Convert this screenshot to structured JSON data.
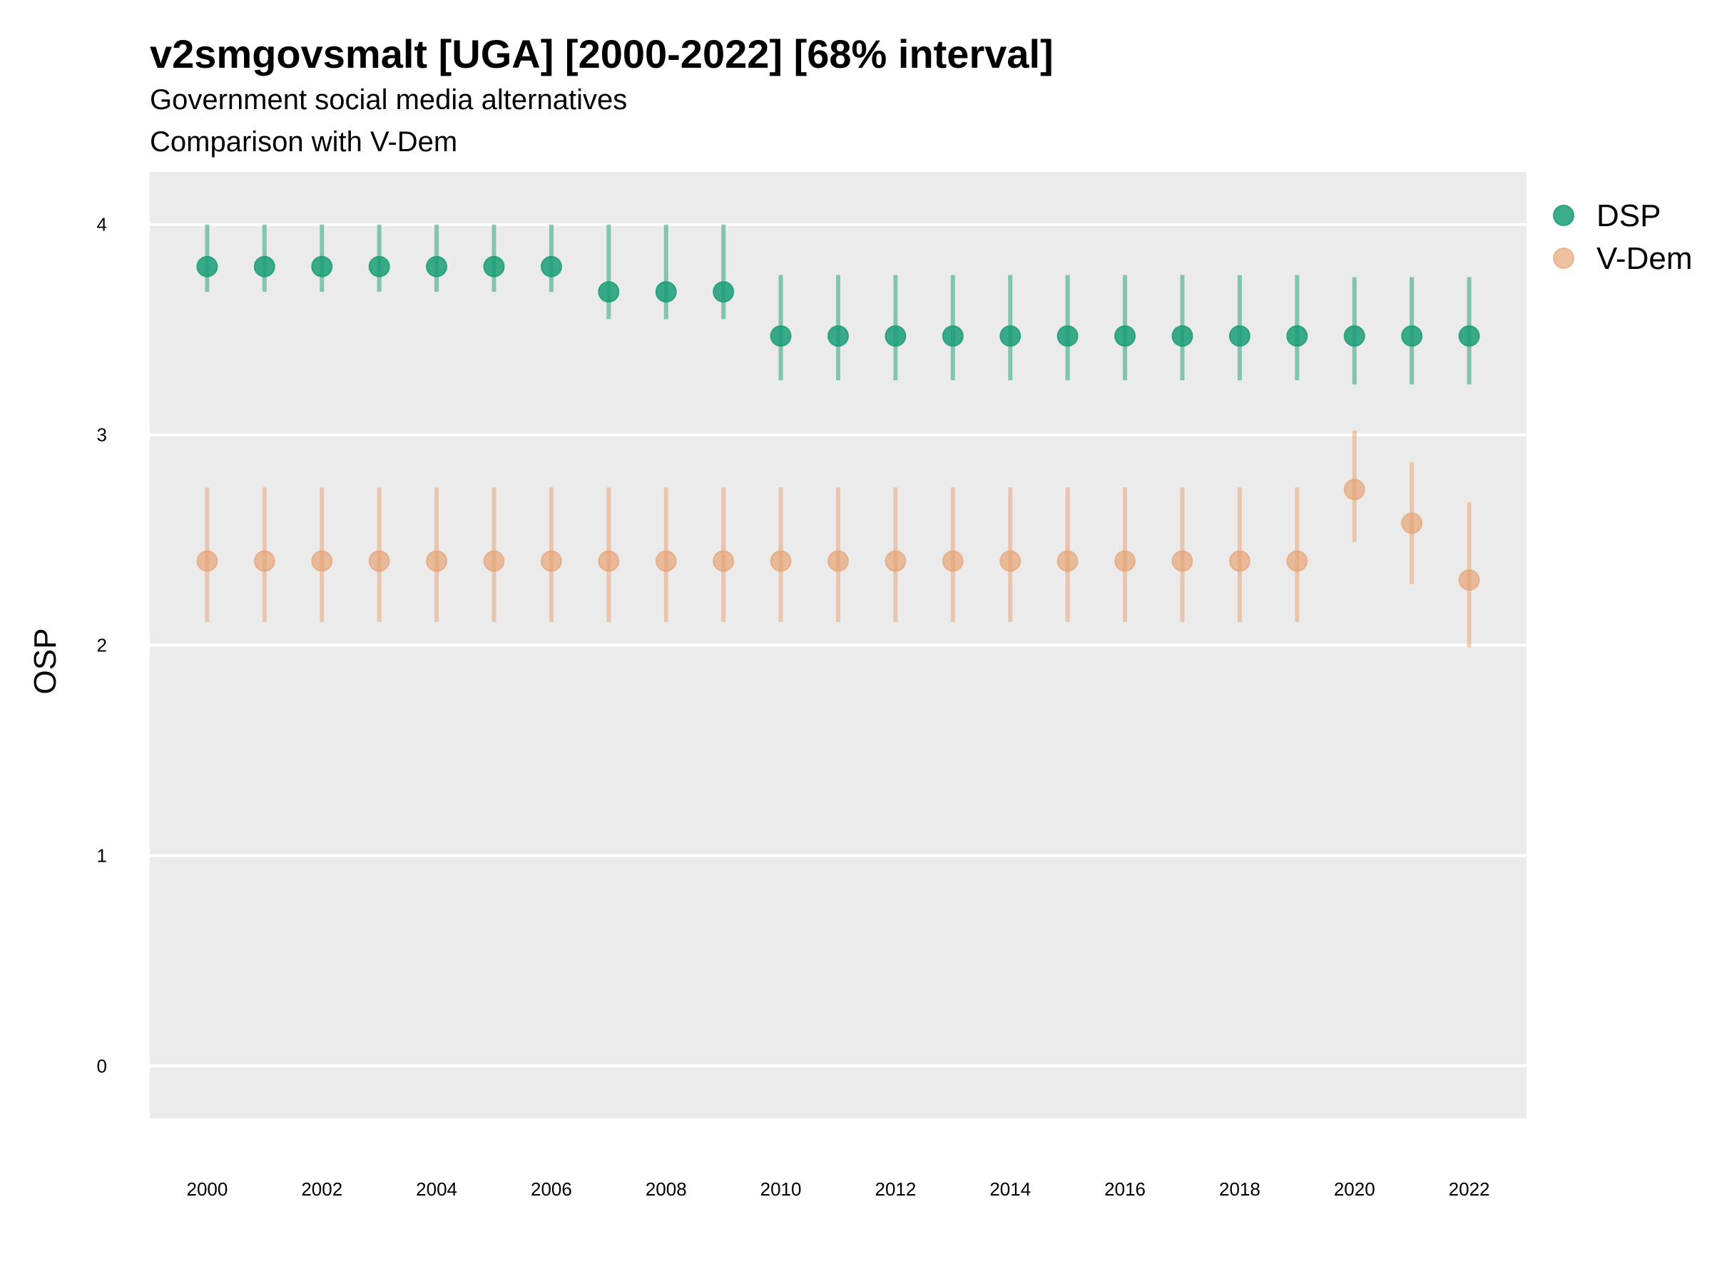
{
  "chart_data": {
    "type": "scatter",
    "title": "v2smgovsmalt [UGA] [2000-2022] [68% interval]",
    "subtitle": "Government social media alternatives",
    "caption": "Comparison with V-Dem",
    "xlabel": "",
    "ylabel": "OSP",
    "ylim": [
      -0.25,
      4.25
    ],
    "y_ticks": [
      "0",
      "1",
      "2",
      "3",
      "4"
    ],
    "x_ticks": [
      "2000",
      "2002",
      "2004",
      "2006",
      "2008",
      "2010",
      "2012",
      "2014",
      "2016",
      "2018",
      "2020",
      "2022"
    ],
    "x": [
      2000,
      2001,
      2002,
      2003,
      2004,
      2005,
      2006,
      2007,
      2008,
      2009,
      2010,
      2011,
      2012,
      2013,
      2014,
      2015,
      2016,
      2017,
      2018,
      2019,
      2020,
      2021,
      2022
    ],
    "grid": true,
    "legend_position": "right",
    "series": [
      {
        "name": "DSP",
        "color": "#1b9e77",
        "values": [
          3.8,
          3.8,
          3.8,
          3.8,
          3.8,
          3.8,
          3.8,
          3.68,
          3.68,
          3.68,
          3.47,
          3.47,
          3.47,
          3.47,
          3.47,
          3.47,
          3.47,
          3.47,
          3.47,
          3.47,
          3.47,
          3.47,
          3.47
        ],
        "lower": [
          3.68,
          3.68,
          3.68,
          3.68,
          3.68,
          3.68,
          3.68,
          3.55,
          3.55,
          3.55,
          3.26,
          3.26,
          3.26,
          3.26,
          3.26,
          3.26,
          3.26,
          3.26,
          3.26,
          3.26,
          3.24,
          3.24,
          3.24
        ],
        "upper": [
          4.0,
          4.0,
          4.0,
          4.0,
          4.0,
          4.0,
          4.0,
          4.0,
          4.0,
          4.0,
          3.76,
          3.76,
          3.76,
          3.76,
          3.76,
          3.76,
          3.76,
          3.76,
          3.76,
          3.76,
          3.75,
          3.75,
          3.75
        ]
      },
      {
        "name": "V-Dem",
        "color": "#e6a06e",
        "values": [
          2.4,
          2.4,
          2.4,
          2.4,
          2.4,
          2.4,
          2.4,
          2.4,
          2.4,
          2.4,
          2.4,
          2.4,
          2.4,
          2.4,
          2.4,
          2.4,
          2.4,
          2.4,
          2.4,
          2.4,
          2.74,
          2.58,
          2.31
        ],
        "lower": [
          2.11,
          2.11,
          2.11,
          2.11,
          2.11,
          2.11,
          2.11,
          2.11,
          2.11,
          2.11,
          2.11,
          2.11,
          2.11,
          2.11,
          2.11,
          2.11,
          2.11,
          2.11,
          2.11,
          2.11,
          2.49,
          2.29,
          1.99
        ],
        "upper": [
          2.75,
          2.75,
          2.75,
          2.75,
          2.75,
          2.75,
          2.75,
          2.75,
          2.75,
          2.75,
          2.75,
          2.75,
          2.75,
          2.75,
          2.75,
          2.75,
          2.75,
          2.75,
          2.75,
          2.75,
          3.02,
          2.87,
          2.68
        ]
      }
    ]
  }
}
